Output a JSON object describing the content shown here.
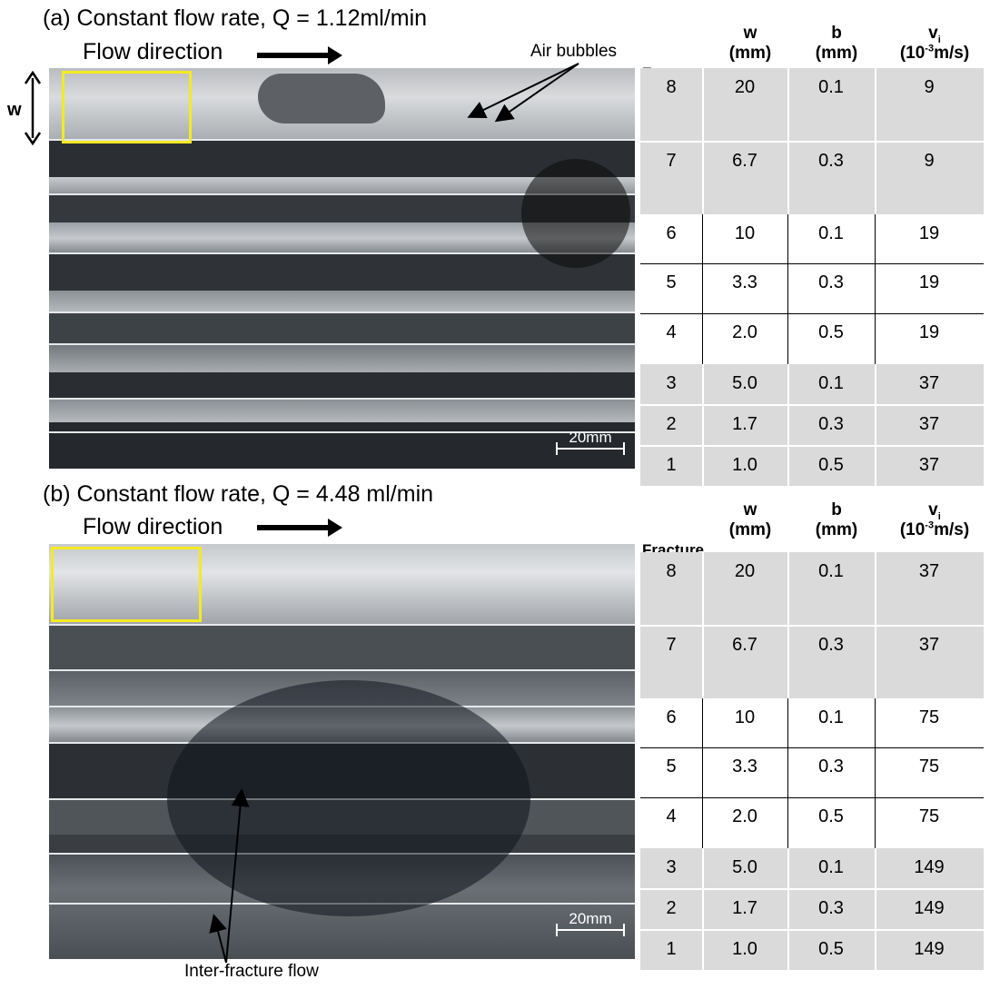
{
  "panel_a": {
    "title": "(a) Constant flow rate, Q = 1.12ml/min",
    "flow_label": "Flow direction",
    "air_bubbles_label": "Air bubbles",
    "w_label": "w",
    "scale_label": "20mm"
  },
  "panel_b": {
    "title": "(b) Constant flow rate, Q = 4.48 ml/min",
    "flow_label": "Flow direction",
    "inter_fracture_label": "Inter-fracture flow",
    "scale_label": "20mm"
  },
  "table_headers": {
    "fracture": "Fracture",
    "w_sym": "w",
    "w_unit": "(mm)",
    "b_sym": "b",
    "b_unit": "(mm)",
    "v_sym": "v",
    "v_sub": "i",
    "v_unit_pre": "(10",
    "v_unit_exp": "-3",
    "v_unit_post": "m/s)"
  },
  "table_a": [
    {
      "fracture": "8",
      "w": "20",
      "b": "0.1",
      "v": "9"
    },
    {
      "fracture": "7",
      "w": "6.7",
      "b": "0.3",
      "v": "9"
    },
    {
      "fracture": "6",
      "w": "10",
      "b": "0.1",
      "v": "19"
    },
    {
      "fracture": "5",
      "w": "3.3",
      "b": "0.3",
      "v": "19"
    },
    {
      "fracture": "4",
      "w": "2.0",
      "b": "0.5",
      "v": "19"
    },
    {
      "fracture": "3",
      "w": "5.0",
      "b": "0.1",
      "v": "37"
    },
    {
      "fracture": "2",
      "w": "1.7",
      "b": "0.3",
      "v": "37"
    },
    {
      "fracture": "1",
      "w": "1.0",
      "b": "0.5",
      "v": "37"
    }
  ],
  "table_b": [
    {
      "fracture": "8",
      "w": "20",
      "b": "0.1",
      "v": "37"
    },
    {
      "fracture": "7",
      "w": "6.7",
      "b": "0.3",
      "v": "37"
    },
    {
      "fracture": "6",
      "w": "10",
      "b": "0.1",
      "v": "75"
    },
    {
      "fracture": "5",
      "w": "3.3",
      "b": "0.3",
      "v": "75"
    },
    {
      "fracture": "4",
      "w": "2.0",
      "b": "0.5",
      "v": "75"
    },
    {
      "fracture": "3",
      "w": "5.0",
      "b": "0.1",
      "v": "149"
    },
    {
      "fracture": "2",
      "w": "1.7",
      "b": "0.3",
      "v": "149"
    },
    {
      "fracture": "1",
      "w": "1.0",
      "b": "0.5",
      "v": "149"
    }
  ],
  "colors": {
    "highlight_box": "#f4ea22",
    "table_shade": "#dadada"
  }
}
